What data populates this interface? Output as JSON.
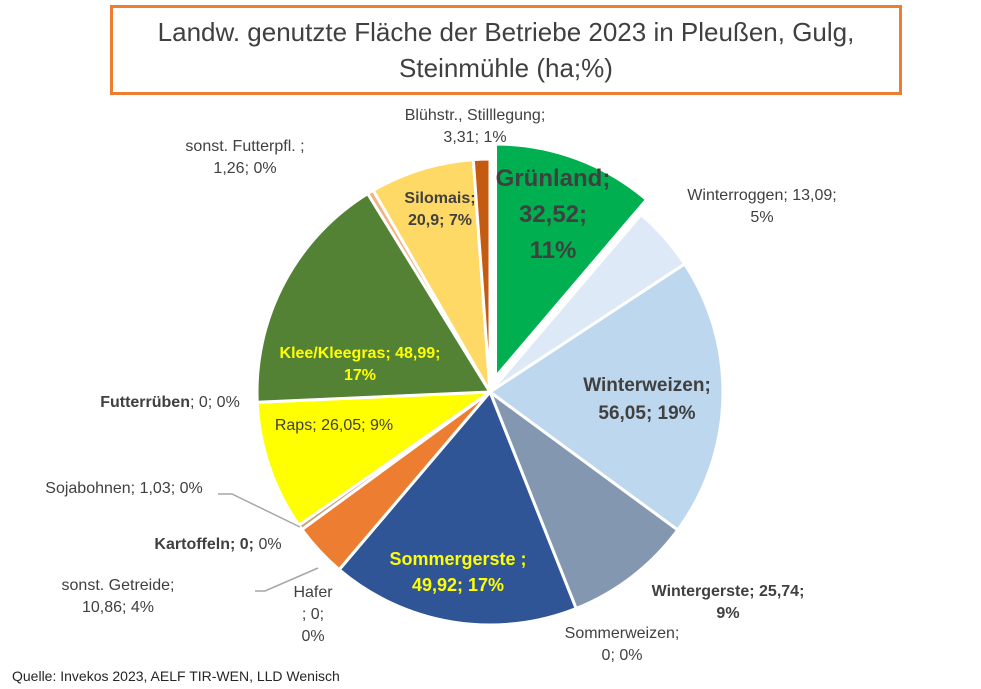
{
  "chart_data": {
    "type": "pie",
    "title": "Landw. genutzte Fläche der Betriebe 2023 in Pleußen, Gulg,\nSteinmühle (ha;%)",
    "unit": "ha",
    "slices": [
      {
        "name": "Grünland",
        "value": 32.52,
        "percent": 11,
        "color": "#00b050",
        "exploded": true,
        "label_bold": "Grünland;\n32,52;\n11%",
        "label_normal": ""
      },
      {
        "name": "Winterroggen",
        "value": 13.09,
        "percent": 5,
        "color": "#dde9f6",
        "label_bold": "",
        "label_normal": "Winterroggen; 13,09;\n5%"
      },
      {
        "name": "Winterweizen",
        "value": 56.05,
        "percent": 19,
        "color": "#bdd7ee",
        "label_bold": "Winterweizen;\n56,05; 19%",
        "label_normal": ""
      },
      {
        "name": "Wintergerste",
        "value": 25.74,
        "percent": 9,
        "color": "#8497b0",
        "label_bold": "Wintergerste; 25,74;\n9%",
        "label_normal": ""
      },
      {
        "name": "Sommerweizen",
        "value": 0,
        "percent": 0,
        "color": "#a9c4eb",
        "label_bold": "",
        "label_normal": "Sommerweizen;\n0; 0%"
      },
      {
        "name": "Sommergerste",
        "value": 49.92,
        "percent": 17,
        "color": "#2f5597",
        "label_bold": "Sommergerste ;\n49,92; 17%",
        "label_normal": ""
      },
      {
        "name": "Hafer",
        "value": 0,
        "percent": 0,
        "color": "#7f7f7f",
        "label_bold": "",
        "label_normal": "Hafer\n; 0;\n0%"
      },
      {
        "name": "sonst. Getreide",
        "value": 10.86,
        "percent": 4,
        "color": "#ed7d31",
        "label_bold": "",
        "label_normal": "sonst. Getreide;\n10,86; 4%"
      },
      {
        "name": "Kartoffeln",
        "value": 0,
        "percent": 0,
        "color": "#a5a5a5",
        "label_bold": "Kartoffeln; 0;",
        "label_normal": " 0%"
      },
      {
        "name": "Sojabohnen",
        "value": 1.03,
        "percent": 0,
        "color": "#c9a27a",
        "label_bold": "",
        "label_normal": "Sojabohnen; 1,03; 0%"
      },
      {
        "name": "Raps",
        "value": 26.05,
        "percent": 9,
        "color": "#ffff00",
        "label_bold": "",
        "label_normal": "Raps; 26,05; 9%"
      },
      {
        "name": "Futterrüben",
        "value": 0,
        "percent": 0,
        "color": "#7030a0",
        "label_bold": "Futterrüben",
        "label_normal": "; 0; 0%"
      },
      {
        "name": "Klee/Kleegras",
        "value": 48.99,
        "percent": 17,
        "color": "#548235",
        "label_bold": "Klee/Kleegras; 48,99;\n17%",
        "label_normal": ""
      },
      {
        "name": "sonst. Futterpfl.",
        "value": 1.26,
        "percent": 0,
        "color": "#f4b183",
        "label_bold": "",
        "label_normal": "sonst. Futterpfl. ;\n1,26; 0%"
      },
      {
        "name": "Silomais",
        "value": 20.9,
        "percent": 7,
        "color": "#ffd966",
        "label_bold": "Silomais;\n20,9; 7%",
        "label_normal": ""
      },
      {
        "name": "Blühstr., Stilllegung",
        "value": 3.31,
        "percent": 1,
        "color": "#c55a11",
        "label_bold": "",
        "label_normal": "Blühstr., Stilllegung;\n3,31; 1%"
      }
    ]
  },
  "source": "Quelle: Invekos 2023, AELF TIR-WEN, LLD Wenisch"
}
